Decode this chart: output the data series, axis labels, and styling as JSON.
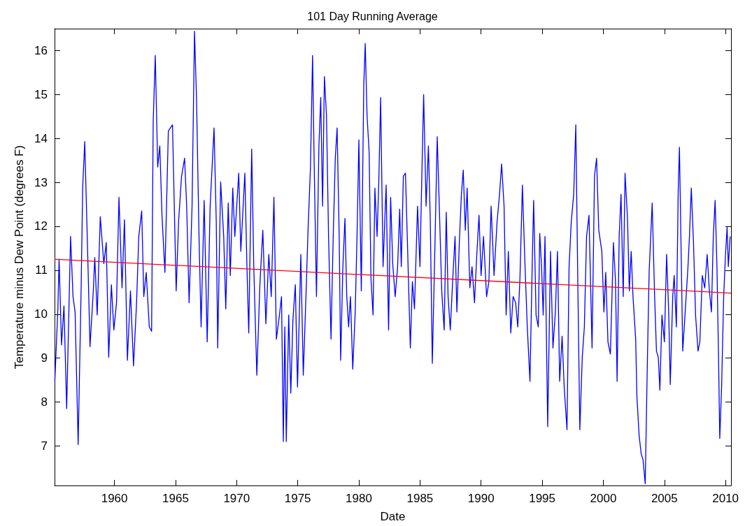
{
  "chart_data": {
    "type": "line",
    "title": "101 Day Running Average",
    "xlabel": "Date",
    "ylabel": "Temperature minus Dew Point (degrees F)",
    "xlim": [
      1955.1,
      2010.45
    ],
    "xticks": [
      1960,
      1965,
      1970,
      1975,
      1980,
      1985,
      1990,
      1995,
      2000,
      2005,
      2010
    ],
    "ylim": [
      6.1,
      16.5
    ],
    "yticks": [
      7,
      8,
      9,
      10,
      11,
      12,
      13,
      14,
      15,
      16
    ],
    "grid": false,
    "marker": "none",
    "line_style": "solid",
    "series": [
      {
        "color": "#0000ff",
        "x": [
          1955.12,
          1955.37,
          1955.47,
          1955.67,
          1955.87,
          1956.09,
          1956.41,
          1956.61,
          1956.78,
          1957.03,
          1957.28,
          1957.4,
          1957.57,
          1957.85,
          1958.0,
          1958.27,
          1958.39,
          1958.59,
          1958.84,
          1959.13,
          1959.33,
          1959.53,
          1959.75,
          1959.95,
          1960.17,
          1960.37,
          1960.62,
          1960.82,
          1961.06,
          1961.31,
          1961.56,
          1961.81,
          1961.99,
          1962.23,
          1962.4,
          1962.6,
          1962.85,
          1963.04,
          1963.17,
          1963.34,
          1963.54,
          1963.71,
          1963.89,
          1964.13,
          1964.41,
          1964.75,
          1965.05,
          1965.25,
          1965.49,
          1965.74,
          1965.91,
          1966.11,
          1966.35,
          1966.55,
          1966.72,
          1966.92,
          1967.09,
          1967.34,
          1967.59,
          1967.83,
          1968.15,
          1968.33,
          1968.45,
          1968.69,
          1968.94,
          1969.11,
          1969.31,
          1969.48,
          1969.68,
          1969.85,
          1970.17,
          1970.34,
          1970.67,
          1970.84,
          1970.99,
          1971.23,
          1971.4,
          1971.65,
          1971.9,
          1972.14,
          1972.39,
          1972.63,
          1972.83,
          1973.05,
          1973.25,
          1973.5,
          1973.67,
          1973.82,
          1973.94,
          1974.06,
          1974.26,
          1974.43,
          1974.6,
          1974.8,
          1974.98,
          1975.25,
          1975.45,
          1975.67,
          1975.84,
          1976.04,
          1976.21,
          1976.36,
          1976.53,
          1976.73,
          1976.88,
          1977.03,
          1977.18,
          1977.35,
          1977.52,
          1977.72,
          1977.9,
          1978.07,
          1978.22,
          1978.39,
          1978.51,
          1978.69,
          1978.86,
          1979.01,
          1979.16,
          1979.31,
          1979.5,
          1979.7,
          1979.85,
          1980.0,
          1980.2,
          1980.4,
          1980.52,
          1980.67,
          1980.84,
          1980.99,
          1981.16,
          1981.31,
          1981.49,
          1981.63,
          1981.78,
          1981.98,
          1982.23,
          1982.43,
          1982.6,
          1982.77,
          1982.97,
          1983.17,
          1983.34,
          1983.47,
          1983.64,
          1983.81,
          1983.96,
          1984.21,
          1984.38,
          1984.55,
          1984.8,
          1985.0,
          1985.15,
          1985.3,
          1985.5,
          1985.69,
          1985.84,
          1986.01,
          1986.24,
          1986.41,
          1986.58,
          1986.78,
          1986.98,
          1987.15,
          1987.3,
          1987.48,
          1987.67,
          1987.87,
          1988.02,
          1988.22,
          1988.39,
          1988.54,
          1988.71,
          1988.86,
          1989.08,
          1989.26,
          1989.46,
          1989.65,
          1989.83,
          1990.0,
          1990.2,
          1990.45,
          1990.64,
          1990.82,
          1991.06,
          1991.31,
          1991.51,
          1991.68,
          1991.88,
          1992.05,
          1992.23,
          1992.43,
          1992.62,
          1992.83,
          1993.0,
          1993.18,
          1993.38,
          1993.58,
          1993.78,
          1994.0,
          1994.18,
          1994.3,
          1994.5,
          1994.68,
          1994.8,
          1994.95,
          1995.08,
          1995.23,
          1995.45,
          1995.68,
          1995.88,
          1996.08,
          1996.25,
          1996.43,
          1996.63,
          1996.8,
          1997.03,
          1997.2,
          1997.38,
          1997.58,
          1997.75,
          1997.93,
          1998.08,
          1998.28,
          1998.45,
          1998.63,
          1998.83,
          1999.08,
          1999.28,
          1999.45,
          1999.63,
          1999.88,
          2000.05,
          2000.2,
          2000.38,
          2000.58,
          2000.83,
          2001.0,
          2001.13,
          2001.3,
          2001.45,
          2001.63,
          2001.78,
          2001.98,
          2002.13,
          2002.28,
          2002.43,
          2002.65,
          2002.75,
          2002.93,
          2003.1,
          2003.25,
          2003.43,
          2003.6,
          2003.75,
          2004.0,
          2004.2,
          2004.35,
          2004.5,
          2004.63,
          2004.8,
          2005.0,
          2005.18,
          2005.35,
          2005.48,
          2005.68,
          2005.8,
          2005.98,
          2006.13,
          2006.23,
          2006.35,
          2006.5,
          2006.7,
          2006.93,
          2007.05,
          2007.2,
          2007.38,
          2007.55,
          2007.75,
          2007.9,
          2008.1,
          2008.3,
          2008.5,
          2008.68,
          2008.85,
          2009.0,
          2009.15,
          2009.3,
          2009.43,
          2009.53,
          2009.68,
          2009.85,
          2010.0,
          2010.13,
          2010.23,
          2010.38
        ],
        "values": [
          8.47,
          10.12,
          11.25,
          9.3,
          10.19,
          7.85,
          11.77,
          10.4,
          10.05,
          7.03,
          10.67,
          12.87,
          13.93,
          10.95,
          9.26,
          10.53,
          11.29,
          9.98,
          12.22,
          11.15,
          11.63,
          9.02,
          10.67,
          9.64,
          10.26,
          12.66,
          10.6,
          12.15,
          8.95,
          10.53,
          8.82,
          10.26,
          11.77,
          12.35,
          10.4,
          10.95,
          9.71,
          9.61,
          14.38,
          15.89,
          13.35,
          13.83,
          12.25,
          10.95,
          14.17,
          14.31,
          10.53,
          12.11,
          13.14,
          13.55,
          12.46,
          10.26,
          12.46,
          16.44,
          14.86,
          11.77,
          9.71,
          12.59,
          9.37,
          12.46,
          14.24,
          12.11,
          9.23,
          13.01,
          11.77,
          10.12,
          12.53,
          10.88,
          12.87,
          11.77,
          13.21,
          11.43,
          13.21,
          11.08,
          9.57,
          13.76,
          11.08,
          8.61,
          10.67,
          11.91,
          9.78,
          11.36,
          10.4,
          12.66,
          9.43,
          9.98,
          10.4,
          7.1,
          9.71,
          7.1,
          9.98,
          8.2,
          9.85,
          10.67,
          8.34,
          11.36,
          8.61,
          10.4,
          11.91,
          13.35,
          15.89,
          13.14,
          10.4,
          13.83,
          14.93,
          12.46,
          15.41,
          14.52,
          11.77,
          9.43,
          11.77,
          13.55,
          14.24,
          11.77,
          8.95,
          11.08,
          12.18,
          10.4,
          9.71,
          10.4,
          8.75,
          10.05,
          11.77,
          13.97,
          10.53,
          15.2,
          16.16,
          14.52,
          13.69,
          10.81,
          9.98,
          12.87,
          11.77,
          13.01,
          14.93,
          11.08,
          12.94,
          9.64,
          12.66,
          11.15,
          10.4,
          11.08,
          12.39,
          11.08,
          13.14,
          13.21,
          11.77,
          9.23,
          10.74,
          10.12,
          12.46,
          11.08,
          13.14,
          15.0,
          12.46,
          13.83,
          12.18,
          8.88,
          11.77,
          14.04,
          12.46,
          10.53,
          9.64,
          12.32,
          10.4,
          9.64,
          10.74,
          11.77,
          10.05,
          11.63,
          12.73,
          13.28,
          11.91,
          12.87,
          10.6,
          11.08,
          10.26,
          11.36,
          12.25,
          10.88,
          11.77,
          10.4,
          10.74,
          12.46,
          10.88,
          12.11,
          12.73,
          13.42,
          12.46,
          9.98,
          11.43,
          9.57,
          10.4,
          10.26,
          9.71,
          10.81,
          12.94,
          11.22,
          9.71,
          8.47,
          11.08,
          12.59,
          9.98,
          9.71,
          11.84,
          11.08,
          9.98,
          11.77,
          7.44,
          11.43,
          9.23,
          10.05,
          11.43,
          8.47,
          9.5,
          8.34,
          7.37,
          11.08,
          12.11,
          12.73,
          14.31,
          10.4,
          7.37,
          9.02,
          9.71,
          11.77,
          12.25,
          9.23,
          13.14,
          13.55,
          11.91,
          11.43,
          10.05,
          10.95,
          9.37,
          9.09,
          11.63,
          10.74,
          8.47,
          11.77,
          12.73,
          10.4,
          13.21,
          12.18,
          10.53,
          11.43,
          10.4,
          9.43,
          8.13,
          7.24,
          6.82,
          6.69,
          6.14,
          8.82,
          10.95,
          12.53,
          10.4,
          9.16,
          9.02,
          8.27,
          9.98,
          9.37,
          11.36,
          10.05,
          8.4,
          10.4,
          10.88,
          9.71,
          12.8,
          13.8,
          11.77,
          9.16,
          10.05,
          11.08,
          11.77,
          12.87,
          11.63,
          9.98,
          9.16,
          9.37,
          10.88,
          10.6,
          11.36,
          10.53,
          10.05,
          11.77,
          12.59,
          11.08,
          9.02,
          7.17,
          8.34,
          10.4,
          11.36,
          11.98,
          11.08,
          11.77
        ]
      },
      {
        "type": "line",
        "color": "#ff0000",
        "x": [
          1955.1,
          2010.45
        ],
        "values": [
          11.25,
          10.48
        ]
      }
    ]
  }
}
